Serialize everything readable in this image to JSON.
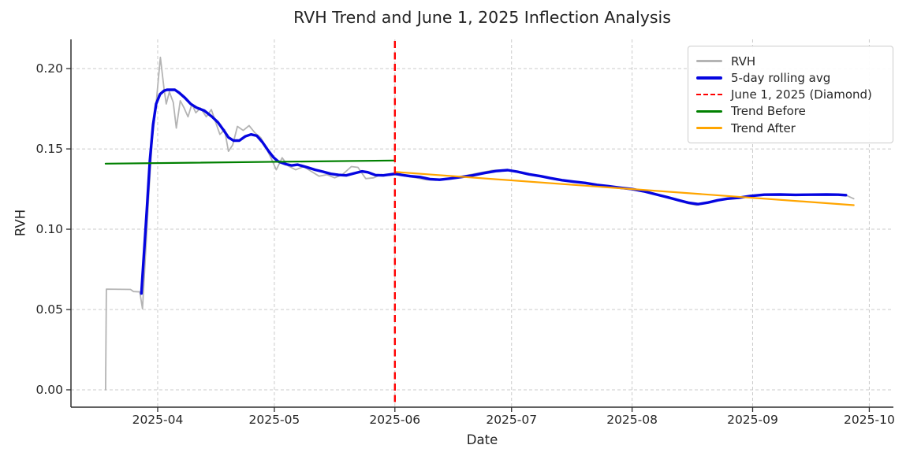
{
  "chart_data": {
    "type": "line",
    "title": "RVH Trend and June 1, 2025 Inflection Analysis",
    "xlabel": "Date",
    "ylabel": "RVH",
    "x_axis": {
      "unit": "days_from_2025-04-01",
      "lim": [
        -22.3,
        189.2
      ],
      "tick_days": [
        0,
        30,
        61,
        91,
        122,
        153,
        183
      ],
      "tick_labels": [
        "2025-04",
        "2025-05",
        "2025-06",
        "2025-07",
        "2025-08",
        "2025-09",
        "2025-10"
      ]
    },
    "y_axis": {
      "lim": [
        -0.0108,
        0.2182
      ],
      "tick_values": [
        0.0,
        0.05,
        0.1,
        0.15,
        0.2
      ],
      "tick_labels": [
        "0.00",
        "0.05",
        "0.10",
        "0.15",
        "0.20"
      ]
    },
    "grid": {
      "show": true,
      "color": "#cbcbcb",
      "style": "dashed"
    },
    "inflection_line": {
      "day": 61,
      "date": "2025-06-01",
      "color": "#ff0000",
      "style": "dashed"
    },
    "series": [
      {
        "name": "RVH",
        "color": "#b4b4b4",
        "width": 1.8,
        "points": [
          [
            -13.4,
            0.0
          ],
          [
            -13.2,
            0.0627
          ],
          [
            -7.0,
            0.0625
          ],
          [
            -6.2,
            0.0612
          ],
          [
            -4.6,
            0.061
          ],
          [
            -3.9,
            0.0505
          ],
          [
            -3.0,
            0.09
          ],
          [
            -2.2,
            0.125
          ],
          [
            -1.4,
            0.156
          ],
          [
            -0.6,
            0.173
          ],
          [
            0.7,
            0.207
          ],
          [
            1.6,
            0.188
          ],
          [
            2.2,
            0.178
          ],
          [
            3.0,
            0.1855
          ],
          [
            4.0,
            0.179
          ],
          [
            4.8,
            0.163
          ],
          [
            5.8,
            0.18
          ],
          [
            6.8,
            0.1755
          ],
          [
            7.8,
            0.17
          ],
          [
            8.8,
            0.178
          ],
          [
            9.8,
            0.1725
          ],
          [
            11.0,
            0.1755
          ],
          [
            12.5,
            0.17
          ],
          [
            13.8,
            0.1745
          ],
          [
            15.0,
            0.166
          ],
          [
            16.0,
            0.159
          ],
          [
            17.2,
            0.162
          ],
          [
            18.2,
            0.1485
          ],
          [
            19.3,
            0.1525
          ],
          [
            20.5,
            0.164
          ],
          [
            22.0,
            0.1615
          ],
          [
            23.5,
            0.1645
          ],
          [
            25.0,
            0.16
          ],
          [
            26.5,
            0.157
          ],
          [
            28.0,
            0.15
          ],
          [
            29.2,
            0.144
          ],
          [
            30.5,
            0.137
          ],
          [
            32.0,
            0.1445
          ],
          [
            33.5,
            0.1395
          ],
          [
            35.5,
            0.137
          ],
          [
            37.5,
            0.139
          ],
          [
            39.5,
            0.136
          ],
          [
            41.5,
            0.133
          ],
          [
            43.5,
            0.134
          ],
          [
            45.5,
            0.132
          ],
          [
            47.5,
            0.134
          ],
          [
            49.8,
            0.139
          ],
          [
            51.5,
            0.1385
          ],
          [
            53.5,
            0.1315
          ],
          [
            55.5,
            0.132
          ],
          [
            57.5,
            0.134
          ],
          [
            59.5,
            0.1335
          ],
          [
            61.5,
            0.134
          ],
          [
            64.0,
            0.133
          ],
          [
            66.5,
            0.132
          ],
          [
            69.0,
            0.1308
          ],
          [
            71.5,
            0.1305
          ],
          [
            74.0,
            0.1315
          ],
          [
            77.0,
            0.1322
          ],
          [
            80.0,
            0.1338
          ],
          [
            83.0,
            0.1352
          ],
          [
            86.0,
            0.1366
          ],
          [
            89.0,
            0.137
          ],
          [
            91.5,
            0.136
          ],
          [
            94.5,
            0.1345
          ],
          [
            97.5,
            0.1332
          ],
          [
            100.5,
            0.132
          ],
          [
            103.5,
            0.1306
          ],
          [
            106.5,
            0.1298
          ],
          [
            109.5,
            0.129
          ],
          [
            112.5,
            0.1278
          ],
          [
            115.5,
            0.127
          ],
          [
            118.5,
            0.126
          ],
          [
            121.5,
            0.1252
          ],
          [
            124.5,
            0.1238
          ],
          [
            127.5,
            0.122
          ],
          [
            130.5,
            0.1202
          ],
          [
            133.5,
            0.118
          ],
          [
            136.0,
            0.1162
          ],
          [
            138.5,
            0.115
          ],
          [
            141.0,
            0.1162
          ],
          [
            143.5,
            0.1178
          ],
          [
            146.0,
            0.1188
          ],
          [
            149.0,
            0.1194
          ],
          [
            152.0,
            0.1205
          ],
          [
            155.5,
            0.1213
          ],
          [
            159.0,
            0.1215
          ],
          [
            163.0,
            0.1212
          ],
          [
            167.0,
            0.1214
          ],
          [
            171.0,
            0.1215
          ],
          [
            174.5,
            0.1214
          ],
          [
            177.0,
            0.1212
          ],
          [
            179.0,
            0.119
          ]
        ]
      },
      {
        "name": "5-day rolling avg",
        "color": "#0505e0",
        "width": 3.4,
        "points": [
          [
            -4.2,
            0.06
          ],
          [
            -3.6,
            0.082
          ],
          [
            -2.8,
            0.112
          ],
          [
            -2.0,
            0.143
          ],
          [
            -1.2,
            0.165
          ],
          [
            -0.4,
            0.178
          ],
          [
            0.6,
            0.184
          ],
          [
            1.6,
            0.1862
          ],
          [
            2.4,
            0.1868
          ],
          [
            4.4,
            0.1868
          ],
          [
            5.5,
            0.185
          ],
          [
            7.0,
            0.1818
          ],
          [
            8.5,
            0.178
          ],
          [
            10.0,
            0.1757
          ],
          [
            12.0,
            0.1738
          ],
          [
            14.0,
            0.17
          ],
          [
            15.5,
            0.1665
          ],
          [
            17.0,
            0.1615
          ],
          [
            18.2,
            0.1572
          ],
          [
            19.5,
            0.1552
          ],
          [
            21.0,
            0.1552
          ],
          [
            22.5,
            0.1578
          ],
          [
            24.0,
            0.159
          ],
          [
            25.5,
            0.1582
          ],
          [
            27.0,
            0.154
          ],
          [
            28.5,
            0.1487
          ],
          [
            29.8,
            0.1447
          ],
          [
            31.0,
            0.1422
          ],
          [
            33.0,
            0.1405
          ],
          [
            34.5,
            0.1397
          ],
          [
            36.0,
            0.1402
          ],
          [
            38.5,
            0.1385
          ],
          [
            40.5,
            0.137
          ],
          [
            42.5,
            0.1358
          ],
          [
            44.5,
            0.1345
          ],
          [
            46.5,
            0.1338
          ],
          [
            48.5,
            0.1335
          ],
          [
            50.5,
            0.1348
          ],
          [
            52.5,
            0.136
          ],
          [
            54.0,
            0.1355
          ],
          [
            56.0,
            0.1337
          ],
          [
            58.0,
            0.1335
          ],
          [
            59.5,
            0.134
          ],
          [
            61.0,
            0.1345
          ],
          [
            63.0,
            0.1337
          ],
          [
            65.0,
            0.133
          ],
          [
            67.5,
            0.1325
          ],
          [
            70.0,
            0.1312
          ],
          [
            72.5,
            0.1308
          ],
          [
            75.0,
            0.1315
          ],
          [
            78.0,
            0.1325
          ],
          [
            81.0,
            0.1335
          ],
          [
            84.0,
            0.135
          ],
          [
            87.0,
            0.1362
          ],
          [
            90.0,
            0.1368
          ],
          [
            92.5,
            0.1358
          ],
          [
            95.5,
            0.1342
          ],
          [
            98.5,
            0.133
          ],
          [
            101.0,
            0.1318
          ],
          [
            104.0,
            0.1305
          ],
          [
            107.0,
            0.1296
          ],
          [
            110.0,
            0.1288
          ],
          [
            113.0,
            0.1276
          ],
          [
            116.0,
            0.1268
          ],
          [
            119.0,
            0.1258
          ],
          [
            122.0,
            0.125
          ],
          [
            125.0,
            0.1236
          ],
          [
            128.0,
            0.1218
          ],
          [
            131.0,
            0.12
          ],
          [
            134.0,
            0.118
          ],
          [
            136.5,
            0.1165
          ],
          [
            139.0,
            0.1156
          ],
          [
            141.5,
            0.1166
          ],
          [
            144.0,
            0.118
          ],
          [
            146.5,
            0.119
          ],
          [
            149.5,
            0.1196
          ],
          [
            152.5,
            0.1207
          ],
          [
            156.0,
            0.1215
          ],
          [
            160.0,
            0.1216
          ],
          [
            164.0,
            0.1214
          ],
          [
            168.0,
            0.1215
          ],
          [
            172.0,
            0.1216
          ],
          [
            175.0,
            0.1215
          ],
          [
            177.0,
            0.1212
          ]
        ]
      },
      {
        "name": "Trend Before",
        "color": "#008000",
        "width": 2.2,
        "points": [
          [
            -13.4,
            0.1408
          ],
          [
            60.7,
            0.1428
          ]
        ]
      },
      {
        "name": "Trend After",
        "color": "#ffa500",
        "width": 2.2,
        "points": [
          [
            61.3,
            0.1356
          ],
          [
            179.0,
            0.115
          ]
        ]
      }
    ],
    "legend": {
      "position": "upper right",
      "entries": [
        {
          "label": "RVH",
          "color": "#b4b4b4",
          "dash": false,
          "thick": false
        },
        {
          "label": "5-day rolling avg",
          "color": "#0505e0",
          "dash": false,
          "thick": true
        },
        {
          "label": "June 1, 2025 (Diamond)",
          "color": "#ff0000",
          "dash": true,
          "thick": false
        },
        {
          "label": "Trend Before",
          "color": "#008000",
          "dash": false,
          "thick": false
        },
        {
          "label": "Trend After",
          "color": "#ffa500",
          "dash": false,
          "thick": false
        }
      ]
    }
  }
}
